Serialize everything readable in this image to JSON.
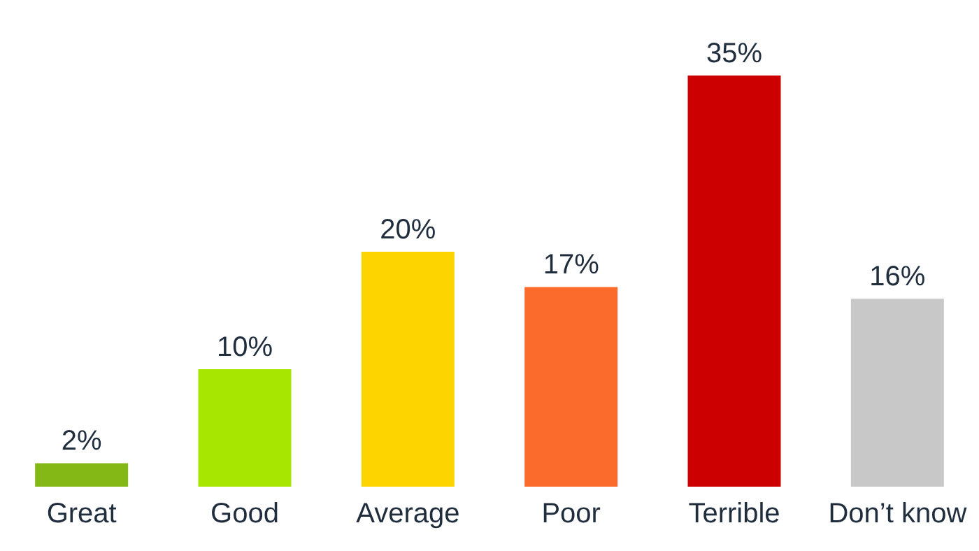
{
  "chart_data": {
    "type": "bar",
    "categories": [
      "Great",
      "Good",
      "Average",
      "Poor",
      "Terrible",
      "Don’t know"
    ],
    "values": [
      2,
      10,
      20,
      17,
      35,
      16
    ],
    "value_labels": [
      "2%",
      "10%",
      "20%",
      "17%",
      "35%",
      "16%"
    ],
    "colors": [
      "#84b817",
      "#a6e600",
      "#fdd300",
      "#fb6b2b",
      "#cc0000",
      "#c8c8c8"
    ],
    "grid": false,
    "legend": false
  }
}
